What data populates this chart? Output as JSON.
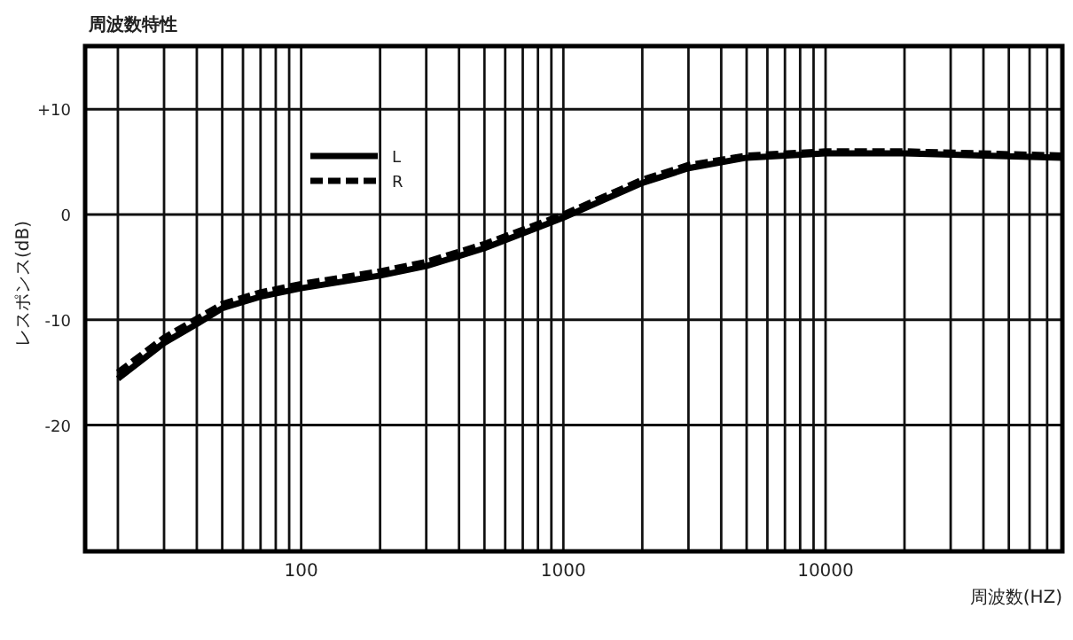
{
  "chart_data": {
    "type": "line",
    "title": "周波数特性",
    "xlabel": "周波数(HZ)",
    "ylabel": "レスポンス(dB)",
    "log": "x",
    "grid": true,
    "legend": "top left",
    "x": [
      20,
      30,
      40,
      50,
      70,
      100,
      200,
      300,
      500,
      1000,
      2000,
      3000,
      5000,
      10000,
      20000,
      80000
    ],
    "series": [
      {
        "name": "L",
        "color": "#000000",
        "line_style": "solid",
        "values": [
          -15.6,
          -12.2,
          -10.4,
          -8.9,
          -7.8,
          -7.0,
          -5.8,
          -4.9,
          -3.2,
          -0.3,
          3.0,
          4.4,
          5.4,
          5.8,
          5.8,
          5.4
        ]
      },
      {
        "name": "R",
        "color": "#000000",
        "line_style": "dashed",
        "values": [
          -15.0,
          -11.7,
          -9.9,
          -8.5,
          -7.4,
          -6.6,
          -5.4,
          -4.5,
          -2.8,
          0.0,
          3.3,
          4.7,
          5.6,
          6.0,
          6.0,
          5.6
        ]
      }
    ],
    "xlim": [
      15,
      80000
    ],
    "ylim": [
      -32,
      16
    ],
    "xticks": [
      {
        "value": 20,
        "label": null
      },
      {
        "value": 30,
        "label": null
      },
      {
        "value": 40,
        "label": null
      },
      {
        "value": 50,
        "label": null
      },
      {
        "value": 60,
        "label": null
      },
      {
        "value": 70,
        "label": null
      },
      {
        "value": 80,
        "label": null
      },
      {
        "value": 90,
        "label": null
      },
      100,
      {
        "value": 200,
        "label": null
      },
      {
        "value": 300,
        "label": null
      },
      {
        "value": 400,
        "label": null
      },
      {
        "value": 500,
        "label": null
      },
      {
        "value": 600,
        "label": null
      },
      {
        "value": 700,
        "label": null
      },
      {
        "value": 800,
        "label": null
      },
      {
        "value": 900,
        "label": null
      },
      1000,
      {
        "value": 2000,
        "label": null
      },
      {
        "value": 3000,
        "label": null
      },
      {
        "value": 4000,
        "label": null
      },
      {
        "value": 5000,
        "label": null
      },
      {
        "value": 6000,
        "label": null
      },
      {
        "value": 7000,
        "label": null
      },
      {
        "value": 8000,
        "label": null
      },
      {
        "value": 9000,
        "label": null
      },
      10000,
      {
        "value": 20000,
        "label": null
      },
      {
        "value": 30000,
        "label": null
      },
      {
        "value": 40000,
        "label": null
      },
      {
        "value": 50000,
        "label": null
      },
      {
        "value": 60000,
        "label": null
      },
      {
        "value": 70000,
        "label": null
      }
    ],
    "yticks": [
      {
        "value": 10,
        "label": "+10"
      },
      0,
      -10,
      -20
    ]
  }
}
